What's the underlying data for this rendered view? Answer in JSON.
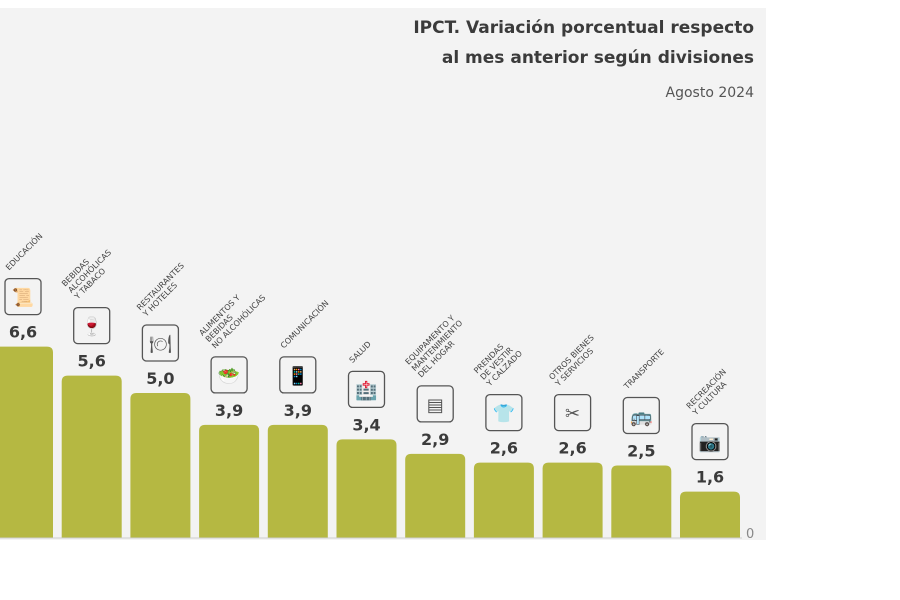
{
  "chart_data": {
    "type": "bar",
    "title": "IPCT. Variación porcentual respecto al mes anterior según divisiones",
    "title_lines": [
      "IPCT. Variación porcentual respecto",
      "al mes anterior según divisiones"
    ],
    "subtitle": "Agosto 2024",
    "categories": [
      [
        "EDUCACIÓN"
      ],
      [
        "BEBIDAS",
        "ALCOHÓLICAS",
        "Y TABACO"
      ],
      [
        "RESTAURANTES",
        "Y HOTELES"
      ],
      [
        "ALIMENTOS Y",
        "BEBIDAS",
        "NO ALCOHÓLICAS"
      ],
      [
        "COMUNICACIÓN"
      ],
      [
        "SALUD"
      ],
      [
        "EQUIPAMENTO Y",
        "MANTENIMIENTO",
        "DEL HOGAR"
      ],
      [
        "PRENDAS",
        "DE VESTIR",
        "Y CALZADO"
      ],
      [
        "OTROS BIENES",
        "Y SERVICIOS"
      ],
      [
        "TRANSPORTE"
      ],
      [
        "RECREACIÓN",
        "Y CULTURA"
      ]
    ],
    "values": [
      6.6,
      5.6,
      5.0,
      3.9,
      3.9,
      3.4,
      2.9,
      2.6,
      2.6,
      2.5,
      1.6
    ],
    "value_labels": [
      "6,6",
      "5,6",
      "5,0",
      "3,9",
      "3,9",
      "3,4",
      "2,9",
      "2,6",
      "2,6",
      "2,5",
      "1,6"
    ],
    "icons": [
      "diploma-icon",
      "wine-bottle-icon",
      "plate-cutlery-icon",
      "food-bowl-icon",
      "phone-icon",
      "hospital-icon",
      "microwave-icon",
      "shirt-icon",
      "scissors-icon",
      "bus-icon",
      "camera-icon"
    ],
    "baseline_label": "0",
    "ylim": [
      0,
      7
    ],
    "grid": false,
    "bar_color": "#b5b842",
    "legend": "none"
  }
}
